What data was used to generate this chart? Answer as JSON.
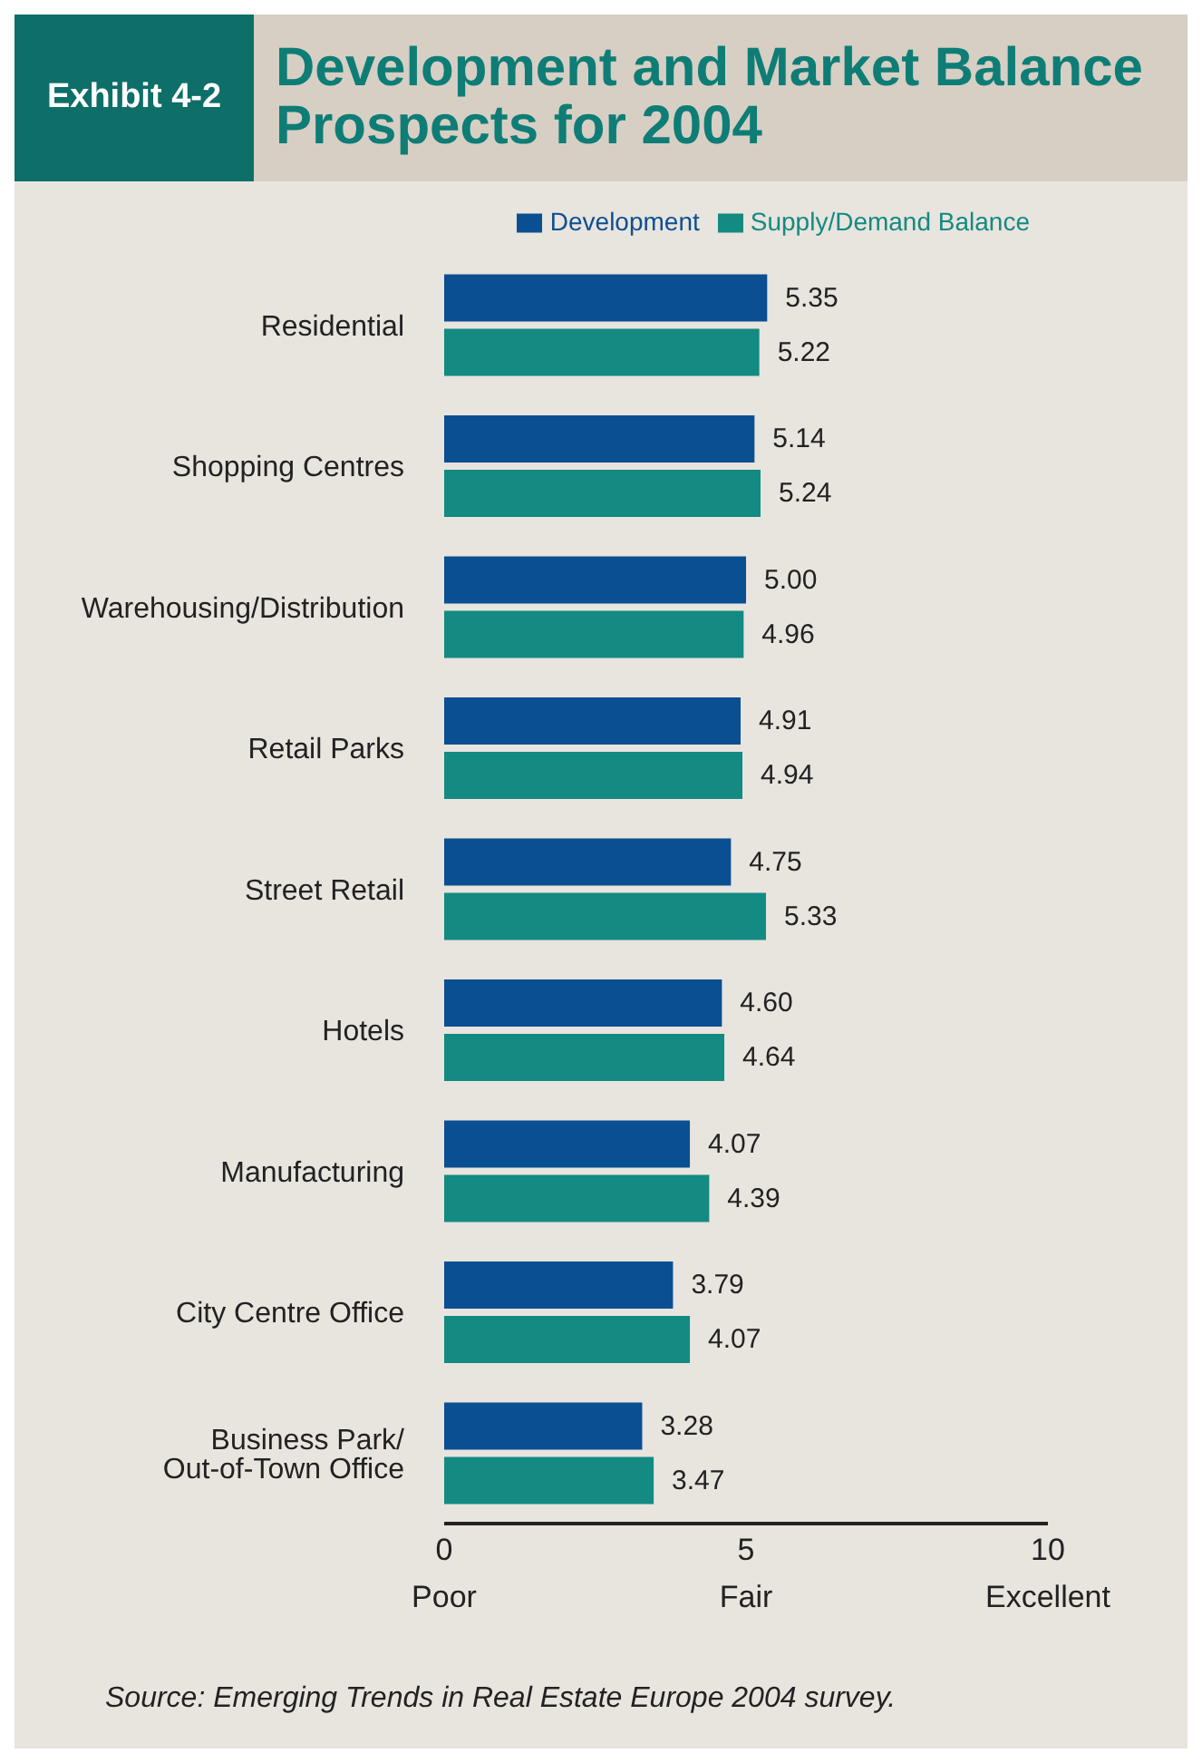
{
  "chart_data": {
    "type": "bar",
    "orientation": "horizontal",
    "title": "Development and Market Balance Prospects for 2004",
    "categories": [
      "Residential",
      "Shopping Centres",
      "Warehousing/Distribution",
      "Retail Parks",
      "Street Retail",
      "Hotels",
      "Manufacturing",
      "City Centre Office",
      "Business Park/ Out-of-Town Office"
    ],
    "series": [
      {
        "name": "Development",
        "color": "#0b4f93",
        "values": [
          5.35,
          5.14,
          5.0,
          4.91,
          4.75,
          4.6,
          4.07,
          3.79,
          3.28
        ],
        "value_labels": [
          "5.35",
          "5.14",
          "5.00",
          "4.91",
          "4.75",
          "4.60",
          "4.07",
          "3.79",
          "3.28"
        ]
      },
      {
        "name": "Supply/Demand Balance",
        "color": "#138a82",
        "values": [
          5.22,
          5.24,
          4.96,
          4.94,
          5.33,
          4.64,
          4.39,
          4.07,
          3.47
        ],
        "value_labels": [
          "5.22",
          "5.24",
          "4.96",
          "4.94",
          "5.33",
          "4.64",
          "4.39",
          "4.07",
          "3.47"
        ]
      }
    ],
    "xlim": [
      0,
      10
    ],
    "xticks": [
      0,
      5,
      10
    ],
    "legend": "top right",
    "grid": false,
    "annotations": [
      "Exhibit 4-2",
      "Poor",
      "Fair",
      "Excellent",
      "Source: Emerging Trends in Real Estate Europe 2004 survey."
    ]
  }
}
